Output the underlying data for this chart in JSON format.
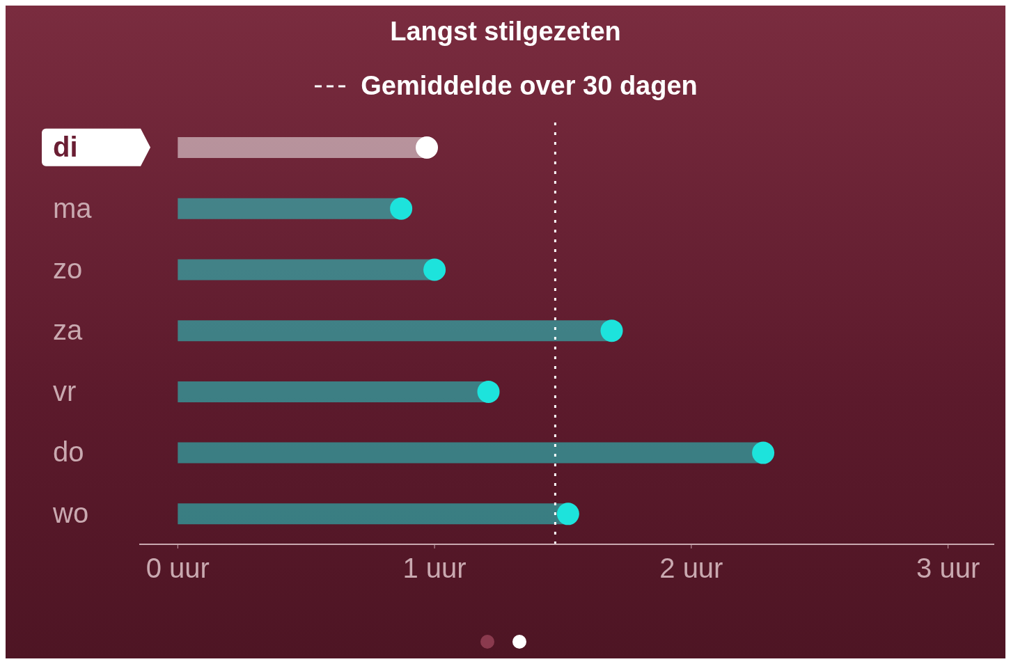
{
  "chart_data": {
    "type": "lollipop",
    "orientation": "horizontal",
    "title": "Langst stilgezeten",
    "categories": [
      "di",
      "ma",
      "zo",
      "za",
      "vr",
      "do",
      "wo"
    ],
    "values": [
      0.97,
      0.87,
      1.0,
      1.69,
      1.21,
      2.28,
      1.52
    ],
    "colors": [
      "#ffffff",
      "#1de3dc",
      "#1de3dc",
      "#1de3dc",
      "#1de3dc",
      "#1de3dc",
      "#1de3dc"
    ],
    "marker": "circle",
    "xlim": [
      -0.15,
      3.18
    ],
    "xticks": [
      {
        "value": 0,
        "label": "0 uur"
      },
      {
        "value": 1,
        "label": "1 uur"
      },
      {
        "value": 2,
        "label": "2 uur"
      },
      {
        "value": 3,
        "label": "3 uur"
      }
    ],
    "ref_lines": [
      {
        "axis": "x",
        "value": 1.47,
        "label": "Gemiddelde over 30 dagen",
        "color": "#ffffff",
        "line_style": "dotted"
      }
    ],
    "grid": false
  }
}
